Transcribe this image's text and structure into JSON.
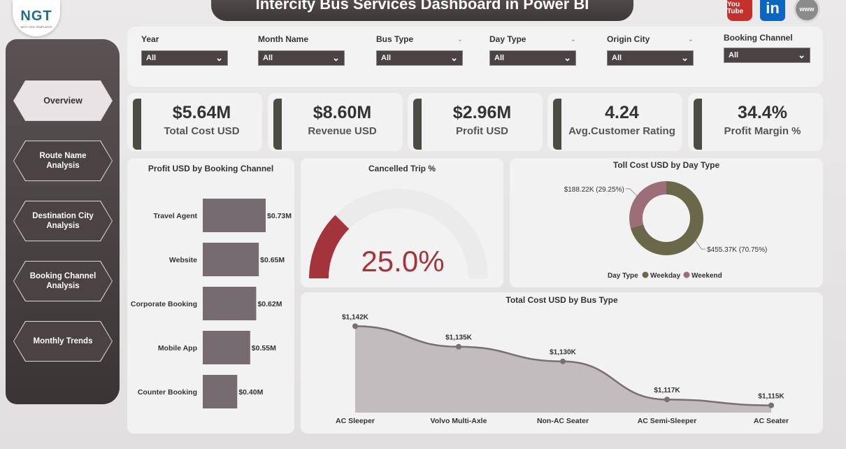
{
  "app": {
    "title": "Intercity Bus Services Dashboard in Power BI"
  },
  "logo": {
    "text": "NGT",
    "subtext": "NEXT GEN TEMPLATES"
  },
  "social": {
    "youtube": "You Tube",
    "linkedin": "in",
    "website": "www"
  },
  "nav": [
    {
      "label": "Overview",
      "active": true
    },
    {
      "label": "Route Name Analysis",
      "active": false
    },
    {
      "label": "Destination City Analysis",
      "active": false
    },
    {
      "label": "Booking Channel Analysis",
      "active": false
    },
    {
      "label": "Monthly Trends",
      "active": false
    }
  ],
  "filters": [
    {
      "label": "Year",
      "value": "All",
      "icon": ""
    },
    {
      "label": "Month Name",
      "value": "All",
      "icon": ""
    },
    {
      "label": "Bus Type",
      "value": "All",
      "icon": "chevron-down-icon"
    },
    {
      "label": "Day Type",
      "value": "All",
      "icon": "chevron-down-icon"
    },
    {
      "label": "Origin City",
      "value": "All",
      "icon": "chevron-down-icon"
    },
    {
      "label": "Booking Channel",
      "value": "All",
      "icon": ""
    }
  ],
  "kpis": [
    {
      "value": "$5.64M",
      "label": "Total Cost USD"
    },
    {
      "value": "$8.60M",
      "label": "Revenue USD"
    },
    {
      "value": "$2.96M",
      "label": "Profit USD"
    },
    {
      "value": "4.24",
      "label": "Avg.Customer Rating"
    },
    {
      "value": "34.4%",
      "label": "Profit Margin %"
    }
  ],
  "colors": {
    "accent_dark": "#4a4243",
    "bar": "#766b71",
    "gauge": "#a4343b",
    "donut_weekday": "#6b6749",
    "donut_weekend": "#9b6e78",
    "area_fill": "#c2bcbe",
    "area_line": "#7a6e74"
  },
  "chart_data": [
    {
      "type": "bar",
      "title": "Profit USD by Booking Channel",
      "categories": [
        "Travel Agent",
        "Website",
        "Corporate Booking",
        "Mobile App",
        "Counter Booking"
      ],
      "values": [
        0.73,
        0.65,
        0.62,
        0.55,
        0.4
      ],
      "data_labels": [
        "$0.73M",
        "$0.65M",
        "$0.62M",
        "$0.55M",
        "$0.40M"
      ],
      "orientation": "horizontal"
    },
    {
      "type": "gauge",
      "title": "Cancelled Trip %",
      "value": 25.0,
      "max": 100,
      "display": "25.0%"
    },
    {
      "type": "pie",
      "title": "Toll Cost USD by Day Type",
      "legend_title": "Day Type",
      "series": [
        {
          "name": "Weekday",
          "value": 455.37,
          "label": "$455.37K (70.75%)"
        },
        {
          "name": "Weekend",
          "value": 188.22,
          "label": "$188.22K (29.25%)"
        }
      ]
    },
    {
      "type": "area",
      "title": "Total Cost USD by Bus Type",
      "categories": [
        "AC Sleeper",
        "Volvo Multi-Axle",
        "Non-AC Seater",
        "AC Semi-Sleeper",
        "AC Seater"
      ],
      "values": [
        1142,
        1135,
        1130,
        1117,
        1115
      ],
      "data_labels": [
        "$1,142K",
        "$1,135K",
        "$1,130K",
        "$1,117K",
        "$1,115K"
      ]
    }
  ]
}
